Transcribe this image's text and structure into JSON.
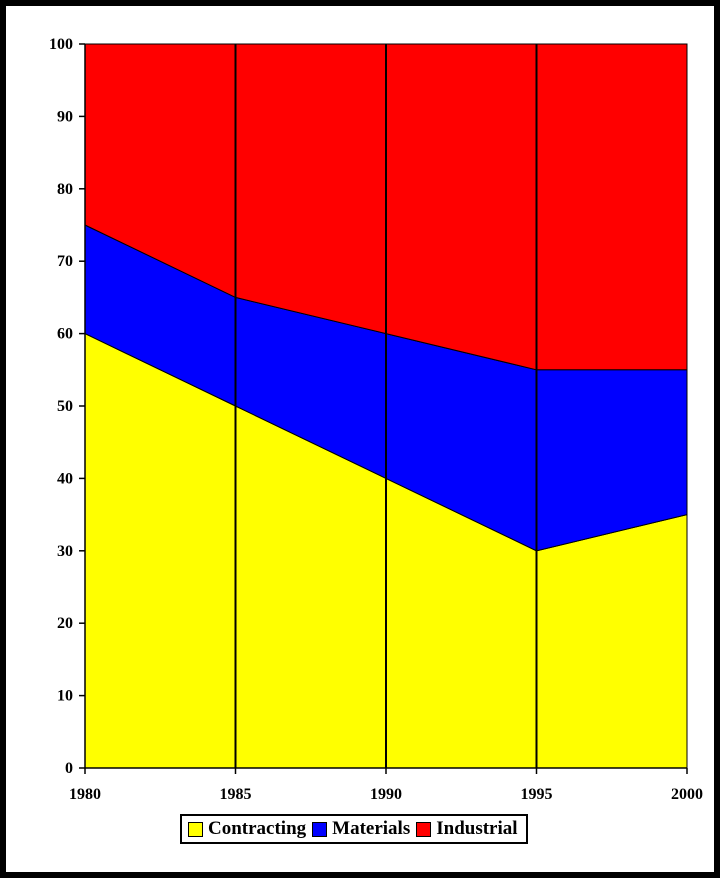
{
  "chart_data": {
    "type": "area",
    "stacked": true,
    "x": [
      1980,
      1985,
      1990,
      1995,
      2000
    ],
    "x_tick_labels": [
      "1980",
      "1985",
      "1990",
      "1995",
      "2000"
    ],
    "y_tick_labels": [
      "0",
      "10",
      "20",
      "30",
      "40",
      "50",
      "60",
      "70",
      "80",
      "90",
      "100"
    ],
    "ylim": [
      0,
      100
    ],
    "grid": "vertical",
    "legend_position": "bottom",
    "series": [
      {
        "name": "Contracting",
        "color": "#ffff00",
        "values": [
          60,
          50,
          40,
          30,
          35
        ]
      },
      {
        "name": "Materials",
        "color": "#0000ff",
        "values": [
          15,
          15,
          20,
          25,
          20
        ]
      },
      {
        "name": "Industrial",
        "color": "#ff0000",
        "values": [
          25,
          35,
          40,
          45,
          45
        ]
      }
    ]
  }
}
